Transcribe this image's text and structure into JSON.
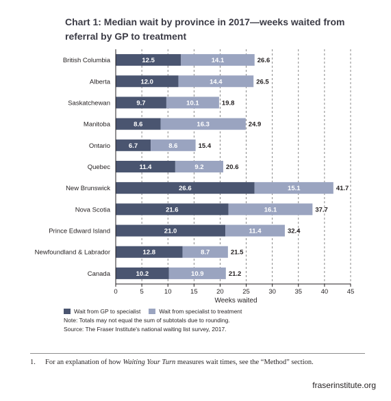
{
  "page": {
    "title": "Chart 1: Median wait by province in 2017—weeks waited from referral by GP to treatment",
    "legend": {
      "gp_to_specialist": "Wait from GP to specialist",
      "specialist_to_treatment": "Wait from specialist to treatment"
    },
    "note": "Note: Totals may not equal the sum of subtotals due to rounding.",
    "source": "Source: The Fraser Institute's national waiting list survey, 2017.",
    "footnote": {
      "number": "1.",
      "text_before": "For an explanation of how ",
      "text_italic": "Waiting Your Turn",
      "text_after": " measures wait times, see the “Method” section."
    },
    "site": "fraserinstitute.org"
  },
  "colors": {
    "dark": "#4a5570",
    "light": "#9aa4c0",
    "grid": "#6b6b6b",
    "text": "#231f20"
  },
  "chart_data": {
    "type": "bar",
    "orientation": "horizontal",
    "stacked": true,
    "categories": [
      "British Columbia",
      "Alberta",
      "Saskatchewan",
      "Manitoba",
      "Ontario",
      "Quebec",
      "New Brunswick",
      "Nova Scotia",
      "Prince Edward Island",
      "Newfoundland & Labrador",
      "Canada"
    ],
    "series": [
      {
        "name": "Wait from GP to specialist",
        "values": [
          12.5,
          12.0,
          9.7,
          8.6,
          6.7,
          11.4,
          26.6,
          21.6,
          21.0,
          12.8,
          10.2
        ]
      },
      {
        "name": "Wait from specialist to treatment",
        "values": [
          14.1,
          14.4,
          10.1,
          16.3,
          8.6,
          9.2,
          15.1,
          16.1,
          11.4,
          8.7,
          10.9
        ]
      }
    ],
    "totals": [
      26.6,
      26.5,
      19.8,
      24.9,
      15.4,
      20.6,
      41.7,
      37.7,
      32.4,
      21.5,
      21.2
    ],
    "xlabel": "Weeks waited",
    "xlim": [
      0,
      45
    ],
    "xticks": [
      0,
      5,
      10,
      15,
      20,
      25,
      30,
      35,
      40,
      45
    ],
    "grid": "dashed vertical"
  }
}
